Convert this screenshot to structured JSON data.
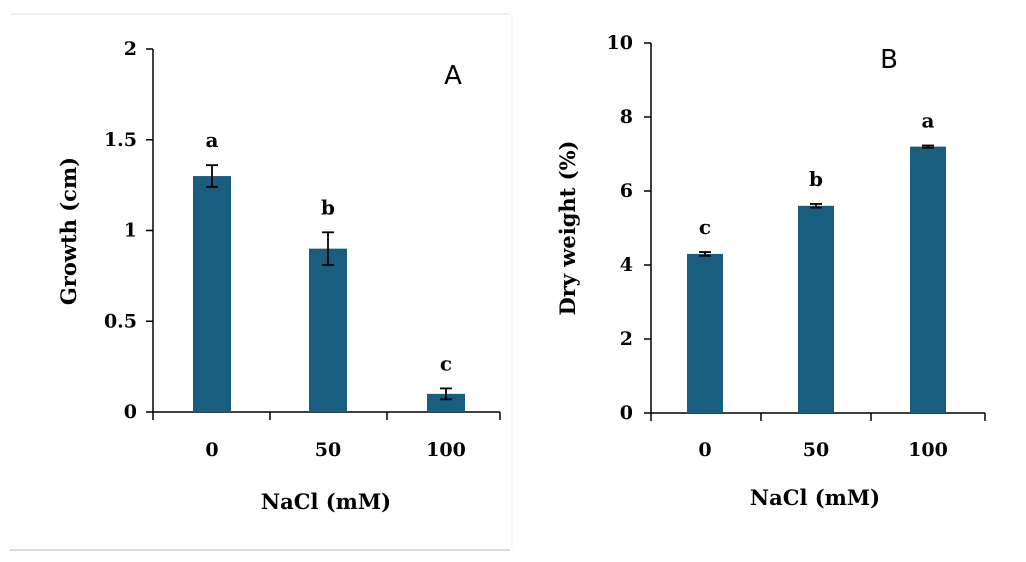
{
  "chart_data": [
    {
      "type": "bar",
      "panel_label": "A",
      "categories": [
        "0",
        "50",
        "100"
      ],
      "values": [
        1.3,
        0.9,
        0.1
      ],
      "errors": [
        0.06,
        0.09,
        0.03
      ],
      "significance": [
        "a",
        "b",
        "c"
      ],
      "xlabel": "NaCl (mM)",
      "ylabel": "Growth (cm)",
      "ylim": [
        0,
        2
      ],
      "yticks": [
        "0",
        "0.5",
        "1",
        "1.5",
        "2"
      ],
      "bar_color": "#1a5e7f",
      "grid": false
    },
    {
      "type": "bar",
      "panel_label": "B",
      "categories": [
        "0",
        "50",
        "100"
      ],
      "values": [
        4.3,
        5.6,
        7.2
      ],
      "errors": [
        0.05,
        0.05,
        0.03
      ],
      "significance": [
        "c",
        "b",
        "a"
      ],
      "xlabel": "NaCl (mM)",
      "ylabel": "Dry weight (%)",
      "ylim": [
        0,
        10
      ],
      "yticks": [
        "0",
        "2",
        "4",
        "6",
        "8",
        "10"
      ],
      "bar_color": "#1a5e7f",
      "grid": false
    }
  ]
}
